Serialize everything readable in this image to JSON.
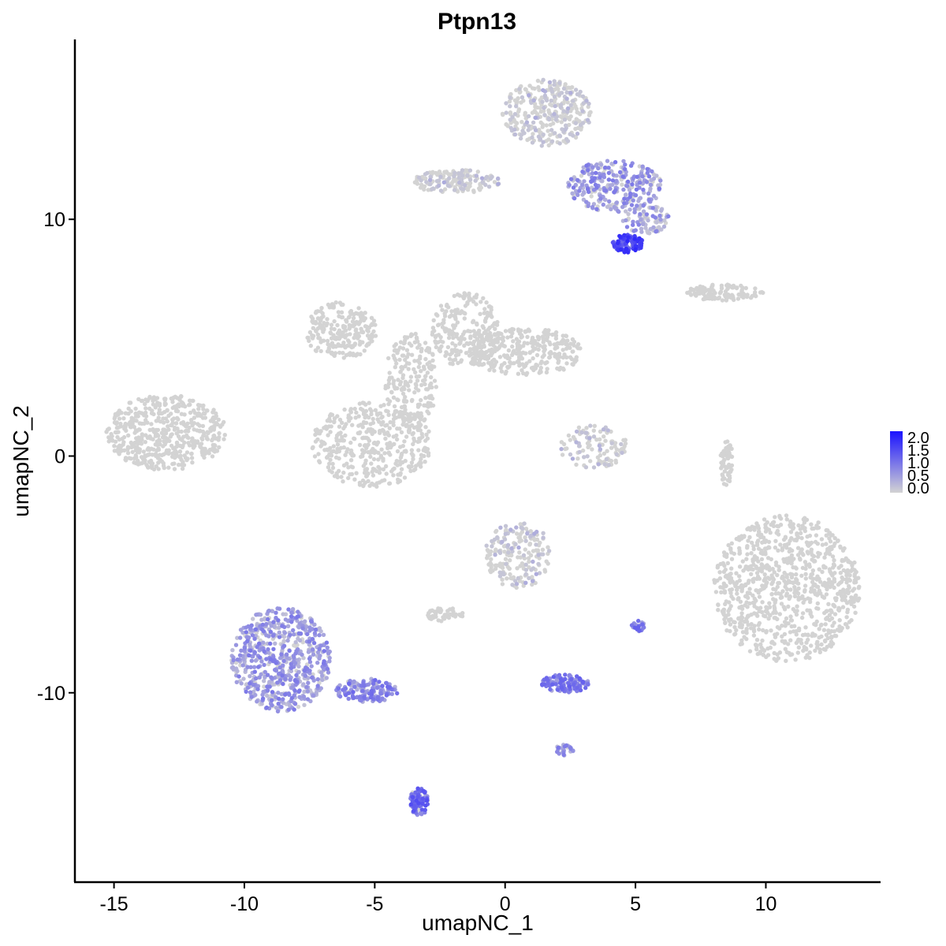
{
  "chart_data": {
    "type": "scatter",
    "title": "Ptpn13",
    "xlabel": "umapNC_1",
    "ylabel": "umapNC_2",
    "xlim": [
      -16.5,
      14.4
    ],
    "ylim": [
      -18.0,
      17.6
    ],
    "x_ticks": [
      {
        "value": -15,
        "label": "-15"
      },
      {
        "value": -10,
        "label": "-10"
      },
      {
        "value": -5,
        "label": "-5"
      },
      {
        "value": 0,
        "label": "0"
      },
      {
        "value": 5,
        "label": "5"
      },
      {
        "value": 10,
        "label": "10"
      }
    ],
    "y_ticks": [
      {
        "value": -10,
        "label": "-10"
      },
      {
        "value": 0,
        "label": "0"
      },
      {
        "value": 10,
        "label": "10"
      }
    ],
    "grid": false,
    "point_color_low": "#d3d3d3",
    "point_color_high": "#1a12ff",
    "legend": {
      "position": "right",
      "type": "colorbar",
      "min": 0.0,
      "max": 2.0,
      "labels": [
        "2.0",
        "1.5",
        "1.0",
        "0.5",
        "0.0"
      ]
    },
    "clusters": [
      {
        "name": "c1",
        "cx": -13.0,
        "cy": 1.0,
        "rx": 2.3,
        "ry": 1.6,
        "n": 520,
        "expr": 0.0
      },
      {
        "name": "c2",
        "cx": -6.3,
        "cy": 5.3,
        "rx": 1.4,
        "ry": 1.2,
        "n": 220,
        "expr": 0.0
      },
      {
        "name": "c3",
        "cx": -5.1,
        "cy": 0.5,
        "rx": 2.3,
        "ry": 1.8,
        "n": 420,
        "expr": 0.0
      },
      {
        "name": "c4",
        "cx": -1.5,
        "cy": 5.3,
        "rx": 1.3,
        "ry": 1.6,
        "n": 240,
        "expr": 0.0
      },
      {
        "name": "c5",
        "cx": 0.8,
        "cy": 4.4,
        "rx": 2.2,
        "ry": 1.0,
        "n": 300,
        "expr": 0.0
      },
      {
        "name": "c6",
        "cx": -3.6,
        "cy": 3.2,
        "rx": 1.0,
        "ry": 2.0,
        "n": 200,
        "expr": 0.0
      },
      {
        "name": "c7",
        "cx": 1.6,
        "cy": 14.5,
        "rx": 1.7,
        "ry": 1.4,
        "n": 320,
        "expr": 0.03
      },
      {
        "name": "c8",
        "cx": 4.2,
        "cy": 11.4,
        "rx": 1.8,
        "ry": 1.1,
        "n": 280,
        "expr": 0.55
      },
      {
        "name": "c9",
        "cx": 5.4,
        "cy": 10.0,
        "rx": 0.9,
        "ry": 0.6,
        "n": 80,
        "expr": 0.45
      },
      {
        "name": "c10",
        "cx": 4.7,
        "cy": 9.0,
        "rx": 0.6,
        "ry": 0.4,
        "n": 110,
        "expr": 1.4
      },
      {
        "name": "c11",
        "cx": -1.9,
        "cy": 11.6,
        "rx": 1.7,
        "ry": 0.5,
        "n": 160,
        "expr": 0.02
      },
      {
        "name": "c12",
        "cx": 8.4,
        "cy": 6.9,
        "rx": 1.5,
        "ry": 0.35,
        "n": 110,
        "expr": 0.0
      },
      {
        "name": "c13",
        "cx": 3.4,
        "cy": 0.4,
        "rx": 1.3,
        "ry": 0.9,
        "n": 110,
        "expr": 0.02
      },
      {
        "name": "c14",
        "cx": 10.8,
        "cy": -5.6,
        "rx": 2.8,
        "ry": 3.1,
        "n": 900,
        "expr": 0.0
      },
      {
        "name": "c15",
        "cx": 0.5,
        "cy": -4.2,
        "rx": 1.3,
        "ry": 1.4,
        "n": 200,
        "expr": 0.02
      },
      {
        "name": "c16",
        "cx": -2.3,
        "cy": -6.7,
        "rx": 0.7,
        "ry": 0.3,
        "n": 50,
        "expr": 0.0
      },
      {
        "name": "c17",
        "cx": -8.6,
        "cy": -8.6,
        "rx": 1.9,
        "ry": 2.2,
        "n": 650,
        "expr": 0.55
      },
      {
        "name": "c18",
        "cx": -5.3,
        "cy": -9.9,
        "rx": 1.2,
        "ry": 0.5,
        "n": 150,
        "expr": 0.7
      },
      {
        "name": "c19",
        "cx": -3.3,
        "cy": -14.6,
        "rx": 0.35,
        "ry": 0.6,
        "n": 90,
        "expr": 1.0
      },
      {
        "name": "c20",
        "cx": 2.3,
        "cy": -9.6,
        "rx": 0.9,
        "ry": 0.4,
        "n": 120,
        "expr": 0.8
      },
      {
        "name": "c21",
        "cx": 5.1,
        "cy": -7.2,
        "rx": 0.25,
        "ry": 0.25,
        "n": 25,
        "expr": 0.8
      },
      {
        "name": "c22",
        "cx": 2.3,
        "cy": -12.4,
        "rx": 0.35,
        "ry": 0.25,
        "n": 25,
        "expr": 0.6
      },
      {
        "name": "c23",
        "cx": 8.5,
        "cy": -0.3,
        "rx": 0.25,
        "ry": 1.0,
        "n": 60,
        "expr": 0.0
      }
    ]
  }
}
